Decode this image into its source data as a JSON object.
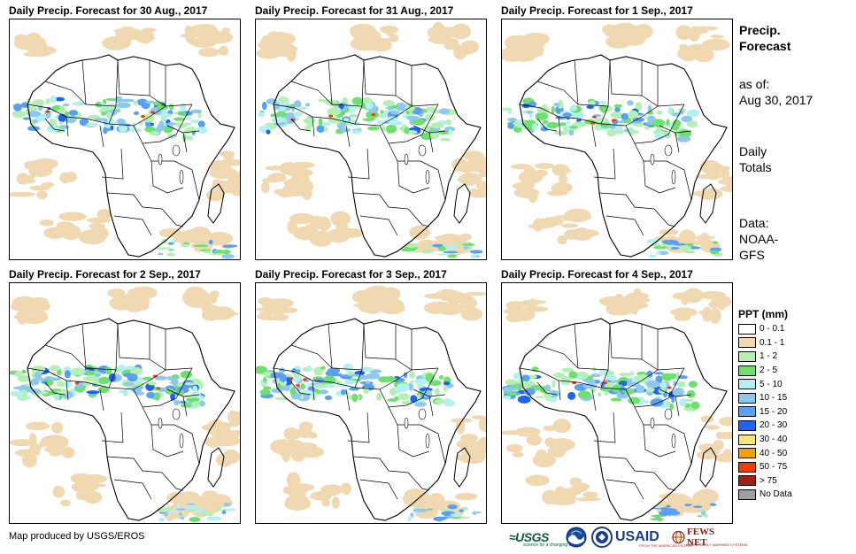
{
  "panels": [
    {
      "title": "Daily Precip. Forecast for 30 Aug., 2017",
      "day": 0
    },
    {
      "title": "Daily Precip. Forecast for 31 Aug., 2017",
      "day": 1
    },
    {
      "title": "Daily Precip. Forecast for 1 Sep., 2017",
      "day": 2
    },
    {
      "title": "Daily Precip. Forecast for 2 Sep., 2017",
      "day": 3
    },
    {
      "title": "Daily Precip. Forecast for 3 Sep., 2017",
      "day": 4
    },
    {
      "title": "Daily Precip. Forecast for 4 Sep., 2017",
      "day": 5
    }
  ],
  "side": {
    "title_line1": "Precip.",
    "title_line2": "Forecast",
    "asof_line1": "as of:",
    "asof_line2": "Aug 30, 2017",
    "daily_line1": "Daily",
    "daily_line2": "Totals",
    "data_line1": "Data:",
    "data_line2": "NOAA-",
    "data_line3": "GFS"
  },
  "legend": {
    "title": "PPT (mm)",
    "items": [
      {
        "label": "0 - 0.1",
        "color": "#ffffff"
      },
      {
        "label": "0.1 - 1",
        "color": "#f0d8b0"
      },
      {
        "label": "1 - 2",
        "color": "#b4f0b4"
      },
      {
        "label": "2 - 5",
        "color": "#6ee070"
      },
      {
        "label": "5 - 10",
        "color": "#b4f0f0"
      },
      {
        "label": "10 - 15",
        "color": "#8ec8f0"
      },
      {
        "label": "15 - 20",
        "color": "#5aa0f0"
      },
      {
        "label": "20 - 30",
        "color": "#1e64f0"
      },
      {
        "label": "30 - 40",
        "color": "#fae678"
      },
      {
        "label": "40 - 50",
        "color": "#f0a000"
      },
      {
        "label": "50 - 75",
        "color": "#f03c00"
      },
      {
        "label": "> 75",
        "color": "#a01e14"
      },
      {
        "label": "No Data",
        "color": "#a0a0a0"
      }
    ]
  },
  "credit": "Map produced by USGS/EROS",
  "logos": {
    "usgs": "≈USGS",
    "usgs_tag": "science for a changing world",
    "usaid": "USAID",
    "usaid_tag": "FROM THE AMERICAN PEOPLE",
    "fews": "FEWS NET",
    "fews_tag": "FAMINE EARLY WARNING SYSTEMS"
  }
}
